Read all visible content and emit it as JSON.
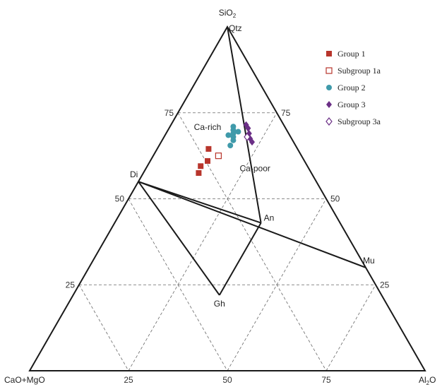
{
  "chart_data": {
    "type": "ternary-scatter",
    "axes": {
      "top": "SiO2",
      "left": "CaO+MgO",
      "right": "Al2O3"
    },
    "axis_display": {
      "top": [
        "SiO",
        "2",
        ""
      ],
      "left": [
        "CaO+MgO",
        "",
        ""
      ],
      "right": [
        "Al",
        "2",
        "O"
      ]
    },
    "ticks": [
      25,
      50,
      75
    ],
    "tick_labels": {
      "left": [
        "25",
        "50",
        "75"
      ],
      "right": [
        "25",
        "50",
        "75"
      ],
      "bottom": [
        "25",
        "50",
        "75"
      ]
    },
    "grid": true,
    "phases": [
      {
        "label": "Qtz",
        "sio2": 100,
        "al2o3": 0
      },
      {
        "label": "Di",
        "sio2": 55,
        "al2o3": 0
      },
      {
        "label": "An",
        "sio2": 43,
        "al2o3": 37
      },
      {
        "label": "Gh",
        "sio2": 22,
        "al2o3": 37
      },
      {
        "label": "Mu",
        "sio2": 30,
        "al2o3": 70
      }
    ],
    "tie_lines": [
      [
        "Qtz",
        "An"
      ],
      [
        "Di",
        "An"
      ],
      [
        "Di",
        "Mu"
      ],
      [
        "Di",
        "Gh"
      ],
      [
        "Gh",
        "An"
      ]
    ],
    "field_labels": [
      {
        "label": "Ca-rich",
        "sio2": 70,
        "al2o3": 10
      },
      {
        "label": "Ca-poor",
        "sio2": 58,
        "al2o3": 28
      }
    ],
    "series": [
      {
        "name": "Group 1",
        "marker": "square-filled",
        "color": "#b8352c",
        "points": [
          {
            "sio2": 64.5,
            "al2o3": 13.0
          },
          {
            "sio2": 61.0,
            "al2o3": 14.5
          },
          {
            "sio2": 59.5,
            "al2o3": 13.5
          },
          {
            "sio2": 57.5,
            "al2o3": 14.0
          }
        ]
      },
      {
        "name": "Subgroup 1a",
        "marker": "square-open",
        "color": "#b8352c",
        "points": [
          {
            "sio2": 62.5,
            "al2o3": 16.5
          }
        ]
      },
      {
        "name": "Group 2",
        "marker": "circle-filled",
        "color": "#3f9aaa",
        "points": [
          {
            "sio2": 71.0,
            "al2o3": 16.0
          },
          {
            "sio2": 70.0,
            "al2o3": 16.5
          },
          {
            "sio2": 69.0,
            "al2o3": 17.0
          },
          {
            "sio2": 68.0,
            "al2o3": 17.5
          },
          {
            "sio2": 69.5,
            "al2o3": 18.0
          },
          {
            "sio2": 67.0,
            "al2o3": 18.0
          },
          {
            "sio2": 65.5,
            "al2o3": 18.0
          },
          {
            "sio2": 68.5,
            "al2o3": 16.0
          }
        ]
      },
      {
        "name": "Group 3",
        "marker": "diamond-filled",
        "color": "#6b2f86",
        "points": [
          {
            "sio2": 71.5,
            "al2o3": 19.0
          },
          {
            "sio2": 70.5,
            "al2o3": 20.0
          },
          {
            "sio2": 69.0,
            "al2o3": 21.0
          },
          {
            "sio2": 67.5,
            "al2o3": 22.0
          },
          {
            "sio2": 66.5,
            "al2o3": 23.0
          }
        ]
      },
      {
        "name": "Subgroup 3a",
        "marker": "diamond-open",
        "color": "#6b2f86",
        "points": [
          {
            "sio2": 68.0,
            "al2o3": 21.0
          }
        ]
      }
    ],
    "legend_position": "top-right"
  }
}
